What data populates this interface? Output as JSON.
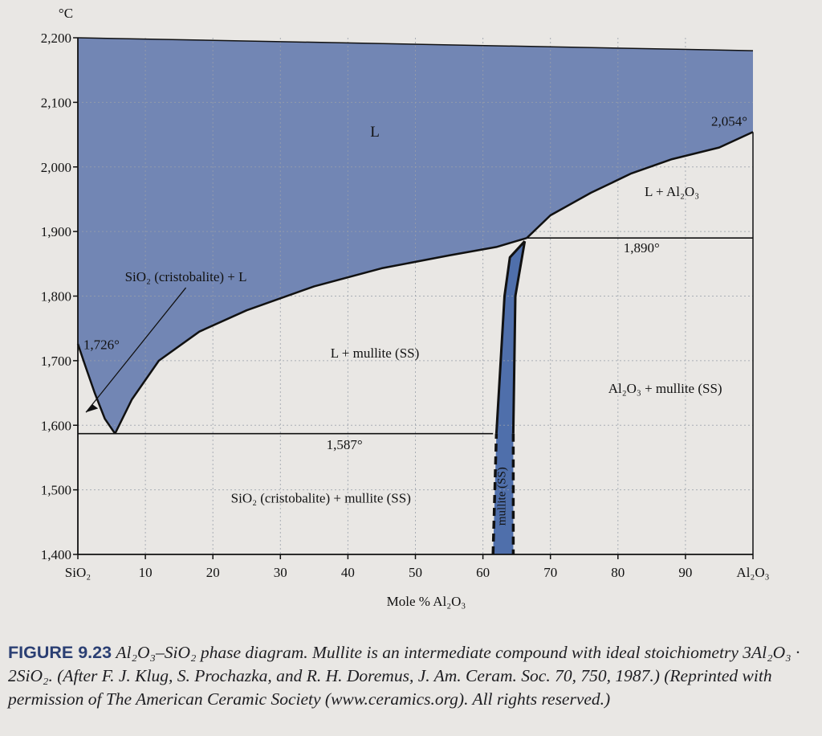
{
  "chart_data": {
    "type": "phase-diagram",
    "title": "",
    "ylabel_unit": "°C",
    "xlabel": "Mole % Al₂O₃",
    "xlim": [
      0,
      100
    ],
    "ylim": [
      1400,
      2200
    ],
    "x_ticks": [
      {
        "value": 0,
        "label": "SiO₂"
      },
      {
        "value": 10,
        "label": "10"
      },
      {
        "value": 20,
        "label": "20"
      },
      {
        "value": 30,
        "label": "30"
      },
      {
        "value": 40,
        "label": "40"
      },
      {
        "value": 50,
        "label": "50"
      },
      {
        "value": 60,
        "label": "60"
      },
      {
        "value": 70,
        "label": "70"
      },
      {
        "value": 80,
        "label": "80"
      },
      {
        "value": 90,
        "label": "90"
      },
      {
        "value": 100,
        "label": "Al₂O₃"
      }
    ],
    "y_ticks": [
      {
        "value": 2200,
        "label": "2,200"
      },
      {
        "value": 2100,
        "label": "2,100"
      },
      {
        "value": 2000,
        "label": "2,000"
      },
      {
        "value": 1900,
        "label": "1,900"
      },
      {
        "value": 1800,
        "label": "1,800"
      },
      {
        "value": 1700,
        "label": "1,700"
      },
      {
        "value": 1600,
        "label": "1,600"
      },
      {
        "value": 1500,
        "label": "1,500"
      },
      {
        "value": 1400,
        "label": "1,400"
      }
    ],
    "grid": true,
    "colors": {
      "liquid": "#7286b4",
      "mullite": "#4f6fab",
      "background": "#e9e7e4",
      "line": "#111111"
    },
    "curves": {
      "liquidus_sio2_side": [
        [
          0,
          1726
        ],
        [
          1,
          1695
        ],
        [
          2.5,
          1650
        ],
        [
          4,
          1610
        ],
        [
          5.5,
          1587
        ]
      ],
      "liquidus_mullite_side": [
        [
          5.5,
          1587
        ],
        [
          8,
          1640
        ],
        [
          12,
          1700
        ],
        [
          18,
          1745
        ],
        [
          25,
          1778
        ],
        [
          35,
          1815
        ],
        [
          45,
          1843
        ],
        [
          55,
          1863
        ],
        [
          62,
          1876
        ],
        [
          66.5,
          1890
        ]
      ],
      "liquidus_al2o3_side": [
        [
          66.5,
          1890
        ],
        [
          70,
          1925
        ],
        [
          76,
          1960
        ],
        [
          82,
          1990
        ],
        [
          88,
          2012
        ],
        [
          95,
          2030
        ],
        [
          100,
          2054
        ]
      ],
      "top_boundary": [
        [
          0,
          2200
        ],
        [
          100,
          2180
        ]
      ],
      "mullite_ss_left": [
        [
          61.5,
          1400
        ],
        [
          62,
          1587
        ],
        [
          63.2,
          1800
        ],
        [
          64,
          1860
        ],
        [
          66.2,
          1885
        ]
      ],
      "mullite_ss_right": [
        [
          66.2,
          1885
        ],
        [
          64.8,
          1800
        ],
        [
          64.5,
          1587
        ],
        [
          64.5,
          1400
        ]
      ],
      "isotherms": [
        {
          "value": 1587,
          "x_from": 0,
          "x_to": 61.5
        },
        {
          "value": 1890,
          "x_from": 66.5,
          "x_to": 100
        }
      ]
    },
    "annotations": [
      {
        "text": "L",
        "x": 44,
        "y": 2047
      },
      {
        "text": "2,054°",
        "x": 96.5,
        "y": 2064
      },
      {
        "text": "L + Al₂O₃",
        "x": 88,
        "y": 1955
      },
      {
        "text": "1,890°",
        "x": 83.5,
        "y": 1868
      },
      {
        "text": "SiO₂ (cristobalite) + L",
        "x": 16,
        "y": 1823
      },
      {
        "text": "1,726°",
        "x": 3.5,
        "y": 1718
      },
      {
        "text": "L + mullite (SS)",
        "x": 44,
        "y": 1705
      },
      {
        "text": "Al₂O₃ + mullite (SS)",
        "x": 87,
        "y": 1650
      },
      {
        "text": "1,587°",
        "x": 39.5,
        "y": 1563
      },
      {
        "text": "SiO₂ (cristobalite) + mullite (SS)",
        "x": 36,
        "y": 1480
      },
      {
        "text": "mullite (SS)",
        "x": 63.3,
        "y": 1490
      }
    ]
  },
  "caption": {
    "label": "FIGURE 9.23",
    "body": "Al₂O₃–SiO₂ phase diagram. Mullite is an intermediate compound with ideal stoichiometry 3Al₂O₃ · 2SiO₂. (After F. J. Klug, S. Prochazka, and R. H. Doremus, J. Am. Ceram. Soc. 70, 750, 1987.) (Reprinted with permission of The American Ceramic Society (www.ceramics.org). All rights reserved.)"
  }
}
